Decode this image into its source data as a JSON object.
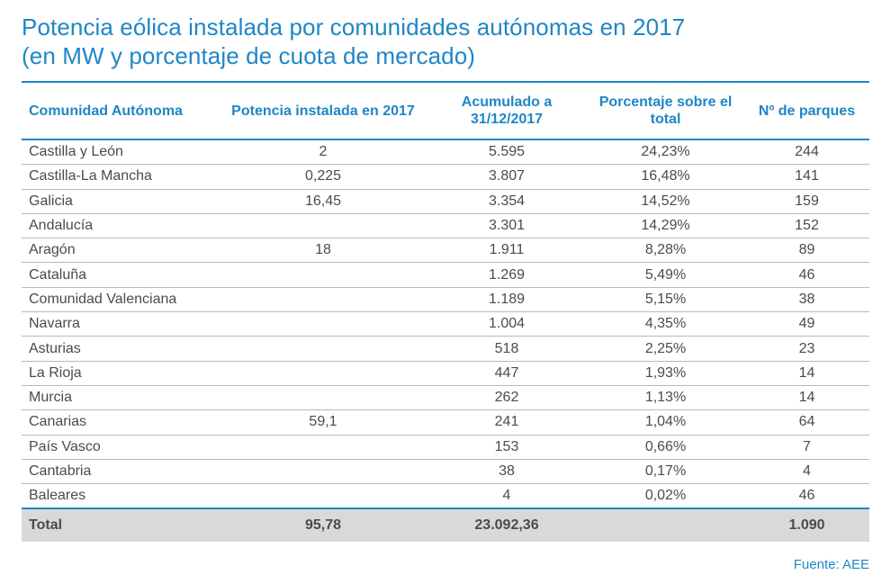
{
  "title": {
    "line1": "Potencia eólica instalada por comunidades autónomas en 2017",
    "line2": "(en MW y porcentaje de cuota de mercado)"
  },
  "chart_data": {
    "type": "table",
    "columns": [
      "Comunidad Autónoma",
      "Potencia instalada en 2017",
      "Acumulado a 31/12/2017",
      "Porcentaje sobre el total",
      "Nº de parques"
    ],
    "rows": [
      [
        "Castilla y León",
        "2",
        "5.595",
        "24,23%",
        "244"
      ],
      [
        "Castilla-La Mancha",
        "0,225",
        "3.807",
        "16,48%",
        "141"
      ],
      [
        "Galicia",
        "16,45",
        "3.354",
        "14,52%",
        "159"
      ],
      [
        "Andalucía",
        "",
        "3.301",
        "14,29%",
        "152"
      ],
      [
        "Aragón",
        "18",
        "1.911",
        "8,28%",
        "89"
      ],
      [
        "Cataluña",
        "",
        "1.269",
        "5,49%",
        "46"
      ],
      [
        "Comunidad Valenciana",
        "",
        "1.189",
        "5,15%",
        "38"
      ],
      [
        "Navarra",
        "",
        "1.004",
        "4,35%",
        "49"
      ],
      [
        "Asturias",
        "",
        "518",
        "2,25%",
        "23"
      ],
      [
        "La Rioja",
        "",
        "447",
        "1,93%",
        "14"
      ],
      [
        "Murcia",
        "",
        "262",
        "1,13%",
        "14"
      ],
      [
        "Canarias",
        "59,1",
        "241",
        "1,04%",
        "64"
      ],
      [
        "País Vasco",
        "",
        "153",
        "0,66%",
        "7"
      ],
      [
        "Cantabria",
        "",
        "38",
        "0,17%",
        "4"
      ],
      [
        "Baleares",
        "",
        "4",
        "0,02%",
        "46"
      ]
    ],
    "total": [
      "Total",
      "95,78",
      "23.092,36",
      "",
      "1.090"
    ]
  },
  "source": "Fuente: AEE",
  "colors": {
    "accent": "#1f86c6",
    "text": "#4b4b4b",
    "row_divider": "#b9b9b9",
    "total_background": "#d9d9d9"
  }
}
